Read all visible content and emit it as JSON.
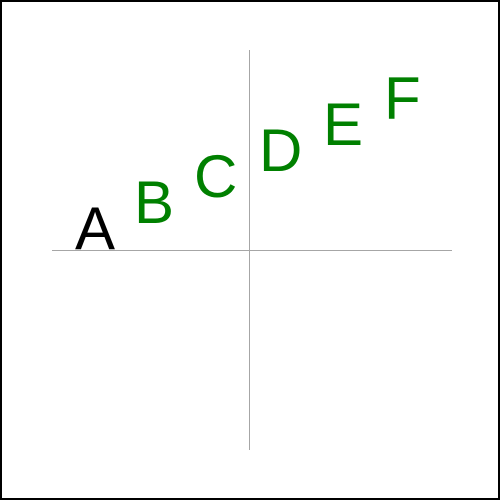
{
  "letters": [
    {
      "label": "A",
      "color": "#000000"
    },
    {
      "label": "B",
      "color": "#008000"
    },
    {
      "label": "C",
      "color": "#008000"
    },
    {
      "label": "D",
      "color": "#008000"
    },
    {
      "label": "E",
      "color": "#008000"
    },
    {
      "label": "F",
      "color": "#008000"
    }
  ],
  "colors": {
    "border": "#000000",
    "axis": "#a6a6a6",
    "background": "#ffffff"
  }
}
